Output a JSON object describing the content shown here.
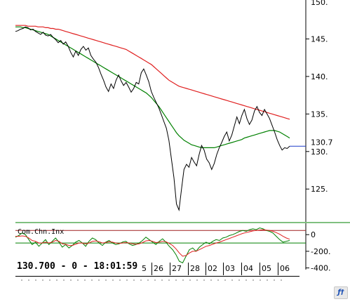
{
  "chart_data": [
    {
      "type": "line",
      "title": "",
      "xlabel": "",
      "ylabel": "",
      "ylim": [
        121,
        150
      ],
      "y_ticks": [
        125,
        130,
        135,
        140,
        145
      ],
      "y_tick_labels": [
        "125.",
        "130.",
        "135.",
        "140.",
        "145."
      ],
      "top_partial_label": "150.",
      "last_price_label": "130.7",
      "last_price": 130.7,
      "grid": false,
      "series": [
        {
          "color": "#000000",
          "values": [
            146.0,
            146.1,
            146.3,
            146.4,
            146.6,
            146.5,
            146.2,
            146.3,
            146.0,
            145.8,
            145.6,
            145.9,
            145.5,
            145.4,
            145.6,
            145.2,
            144.9,
            144.5,
            144.8,
            144.3,
            144.6,
            144.0,
            143.2,
            142.6,
            143.4,
            142.8,
            143.6,
            144.0,
            143.5,
            143.8,
            142.8,
            142.3,
            141.9,
            141.2,
            140.3,
            139.5,
            138.6,
            138.0,
            139.0,
            138.4,
            139.5,
            140.2,
            139.4,
            138.8,
            139.2,
            138.6,
            137.9,
            138.4,
            139.2,
            139.0,
            140.5,
            141.0,
            140.2,
            139.3,
            138.0,
            137.2,
            136.5,
            135.8,
            134.9,
            134.0,
            133.1,
            131.5,
            129.0,
            126.5,
            123.0,
            122.2,
            125.0,
            127.6,
            128.3,
            127.9,
            129.2,
            128.6,
            128.1,
            129.6,
            130.8,
            130.2,
            129.0,
            128.5,
            127.6,
            128.4,
            129.6,
            130.5,
            131.2,
            132.0,
            132.6,
            131.4,
            132.2,
            133.4,
            134.6,
            133.7,
            134.8,
            135.6,
            134.4,
            133.6,
            134.2,
            135.4,
            136.0,
            135.2,
            134.8,
            135.6,
            135.0,
            134.4,
            133.5,
            132.6,
            131.6,
            130.8,
            130.2,
            130.5,
            130.4,
            130.7
          ]
        },
        {
          "color": "#008000",
          "values": [
            146.6,
            146.6,
            146.6,
            146.5,
            146.5,
            146.4,
            146.3,
            146.2,
            146.1,
            146.0,
            145.9,
            145.8,
            145.7,
            145.6,
            145.4,
            145.2,
            145.0,
            144.8,
            144.6,
            144.4,
            144.2,
            144.0,
            143.8,
            143.6,
            143.4,
            143.2,
            143.0,
            142.8,
            142.6,
            142.4,
            142.2,
            142.0,
            141.8,
            141.6,
            141.4,
            141.2,
            141.0,
            140.8,
            140.6,
            140.4,
            140.2,
            140.0,
            139.8,
            139.6,
            139.4,
            139.2,
            139.0,
            138.8,
            138.6,
            138.4,
            138.2,
            138.0,
            137.8,
            137.5,
            137.2,
            136.8,
            136.4,
            136.0,
            135.5,
            135.0,
            134.5,
            134.0,
            133.5,
            133.0,
            132.5,
            132.1,
            131.8,
            131.5,
            131.3,
            131.1,
            130.9,
            130.8,
            130.7,
            130.6,
            130.5,
            130.5,
            130.5,
            130.5,
            130.5,
            130.5,
            130.6,
            130.7,
            130.8,
            130.9,
            131.0,
            131.1,
            131.2,
            131.3,
            131.4,
            131.5,
            131.6,
            131.8,
            131.9,
            132.0,
            132.1,
            132.2,
            132.3,
            132.4,
            132.5,
            132.6,
            132.7,
            132.8,
            132.8,
            132.8,
            132.7,
            132.6,
            132.4,
            132.2,
            132.0,
            131.8
          ]
        },
        {
          "color": "#e02020",
          "values": [
            146.8,
            146.8,
            146.8,
            146.8,
            146.8,
            146.7,
            146.7,
            146.7,
            146.7,
            146.6,
            146.6,
            146.6,
            146.5,
            146.5,
            146.4,
            146.4,
            146.3,
            146.3,
            146.2,
            146.1,
            146.0,
            145.9,
            145.8,
            145.7,
            145.6,
            145.5,
            145.4,
            145.3,
            145.2,
            145.1,
            145.0,
            144.9,
            144.8,
            144.7,
            144.6,
            144.5,
            144.4,
            144.3,
            144.2,
            144.1,
            144.0,
            143.9,
            143.8,
            143.7,
            143.6,
            143.4,
            143.2,
            143.0,
            142.8,
            142.6,
            142.4,
            142.2,
            142.0,
            141.8,
            141.6,
            141.3,
            141.0,
            140.7,
            140.4,
            140.1,
            139.8,
            139.5,
            139.3,
            139.1,
            138.9,
            138.7,
            138.6,
            138.5,
            138.4,
            138.3,
            138.2,
            138.1,
            138.0,
            137.9,
            137.8,
            137.7,
            137.6,
            137.5,
            137.4,
            137.3,
            137.2,
            137.1,
            137.0,
            136.9,
            136.8,
            136.7,
            136.6,
            136.5,
            136.4,
            136.3,
            136.2,
            136.1,
            136.0,
            135.9,
            135.8,
            135.7,
            135.6,
            135.5,
            135.4,
            135.3,
            135.2,
            135.1,
            135.0,
            134.9,
            134.8,
            134.7,
            134.6,
            134.5,
            134.4,
            134.3
          ]
        }
      ]
    },
    {
      "type": "line",
      "title": "Com.Chn.Inx",
      "xlabel": "",
      "ylabel": "",
      "ylim": [
        -420,
        120
      ],
      "y_ticks": [
        0,
        -200,
        -400
      ],
      "y_tick_labels": [
        "0",
        "-200.",
        "-400."
      ],
      "reference_lines": [
        50,
        -100
      ],
      "grid": false,
      "series": [
        {
          "color": "#008000",
          "values": [
            -30,
            -10,
            20,
            0,
            -60,
            -120,
            -90,
            -140,
            -100,
            -60,
            -120,
            -80,
            -40,
            -90,
            -150,
            -120,
            -160,
            -130,
            -90,
            -70,
            -100,
            -140,
            -80,
            -40,
            -60,
            -100,
            -130,
            -90,
            -70,
            -100,
            -120,
            -110,
            -90,
            -80,
            -110,
            -130,
            -120,
            -100,
            -70,
            -30,
            -60,
            -90,
            -120,
            -80,
            -50,
            -90,
            -140,
            -180,
            -240,
            -320,
            -340,
            -260,
            -180,
            -160,
            -200,
            -150,
            -120,
            -90,
            -110,
            -80,
            -60,
            -70,
            -40,
            -30,
            -10,
            0,
            20,
            40,
            50,
            40,
            60,
            70,
            60,
            80,
            70,
            50,
            40,
            20,
            -20,
            -60,
            -90,
            -80,
            -70
          ]
        },
        {
          "color": "#e02020",
          "values": [
            -20,
            -20,
            -15,
            -20,
            -40,
            -70,
            -80,
            -100,
            -100,
            -90,
            -100,
            -90,
            -70,
            -80,
            -110,
            -115,
            -130,
            -130,
            -115,
            -100,
            -100,
            -110,
            -100,
            -80,
            -75,
            -85,
            -100,
            -95,
            -85,
            -90,
            -100,
            -105,
            -100,
            -95,
            -100,
            -110,
            -115,
            -110,
            -95,
            -75,
            -70,
            -80,
            -95,
            -90,
            -80,
            -85,
            -105,
            -130,
            -170,
            -220,
            -260,
            -250,
            -220,
            -200,
            -200,
            -180,
            -160,
            -140,
            -130,
            -115,
            -100,
            -90,
            -75,
            -60,
            -45,
            -30,
            -15,
            0,
            15,
            25,
            35,
            45,
            50,
            55,
            60,
            55,
            50,
            40,
            25,
            5,
            -20,
            -40,
            -55
          ]
        }
      ]
    }
  ],
  "status": {
    "last_price_text": "130.700 - 0 - 18:01:59",
    "date_labels": [
      "5",
      "26",
      "27",
      "28",
      "02",
      "03",
      "04",
      "05",
      "06"
    ],
    "corner_icon_label": "ƒ†"
  }
}
